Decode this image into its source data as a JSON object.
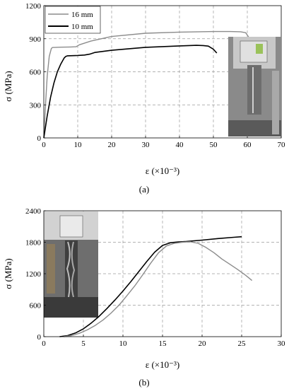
{
  "colors": {
    "gray_series": "#8c8c8c",
    "black_series": "#000000",
    "grid": "#9a9a9a"
  },
  "chart_data": [
    {
      "type": "line",
      "panel_label": "(a)",
      "xlabel": "ε (×10⁻³)",
      "ylabel": "σ (MPa)",
      "xlim": [
        0,
        70
      ],
      "ylim": [
        0,
        1200
      ],
      "xticks": [
        0,
        10,
        20,
        30,
        40,
        50,
        60,
        70
      ],
      "yticks": [
        0,
        300,
        600,
        900,
        1200
      ],
      "grid": "dashed",
      "legend": "top-left",
      "photo_inset": "bottom-right",
      "series": [
        {
          "name": "16 mm",
          "color": "#8c8c8c",
          "x": [
            0,
            0.5,
            1,
            1.6,
            2.2,
            2.5,
            5,
            8,
            9.5,
            10.5,
            14,
            20,
            30,
            40,
            50,
            55,
            58,
            59.5,
            60.3,
            61
          ],
          "y": [
            0,
            300,
            560,
            740,
            810,
            820,
            823,
            825,
            827,
            845,
            880,
            920,
            950,
            960,
            965,
            965,
            963,
            955,
            920,
            880
          ]
        },
        {
          "name": "10 mm",
          "color": "#000000",
          "x": [
            0,
            1,
            2,
            3,
            4,
            5,
            6,
            6.5,
            7,
            10,
            12,
            13.5,
            15,
            20,
            30,
            40,
            45,
            47,
            48.5,
            50,
            51
          ],
          "y": [
            0,
            200,
            370,
            500,
            600,
            670,
            725,
            740,
            745,
            748,
            752,
            760,
            775,
            795,
            822,
            835,
            840,
            838,
            833,
            805,
            770
          ]
        }
      ]
    },
    {
      "type": "line",
      "panel_label": "(b)",
      "xlabel": "ε (×10⁻³)",
      "ylabel": "σ (MPa)",
      "xlim": [
        0,
        30
      ],
      "ylim": [
        0,
        2400
      ],
      "xticks": [
        0,
        5,
        10,
        15,
        20,
        25,
        30
      ],
      "yticks": [
        0,
        600,
        1200,
        1800,
        2400
      ],
      "grid": "dashed",
      "photo_inset": "top-left",
      "series": [
        {
          "color": "#000000",
          "x": [
            2,
            3,
            4,
            5,
            6,
            7,
            8,
            9,
            10,
            11,
            12,
            13,
            14,
            15,
            16,
            17,
            18,
            20,
            22,
            24,
            25
          ],
          "y": [
            0,
            20,
            70,
            150,
            260,
            390,
            540,
            700,
            870,
            1050,
            1240,
            1430,
            1610,
            1740,
            1790,
            1805,
            1815,
            1840,
            1870,
            1895,
            1905
          ]
        },
        {
          "color": "#8c8c8c",
          "x": [
            2.5,
            3.5,
            4.5,
            5.5,
            6.5,
            7.5,
            8.5,
            9.5,
            10.5,
            11.5,
            12.5,
            13.5,
            14.5,
            15.5,
            16.5,
            17.5,
            18.5,
            19.5,
            20.5,
            21.5,
            22.5,
            23.5,
            24.5,
            25.5,
            26.3
          ],
          "y": [
            0,
            20,
            65,
            130,
            215,
            320,
            450,
            600,
            780,
            970,
            1180,
            1400,
            1600,
            1730,
            1780,
            1800,
            1810,
            1780,
            1700,
            1600,
            1480,
            1380,
            1280,
            1170,
            1070
          ]
        }
      ]
    }
  ]
}
